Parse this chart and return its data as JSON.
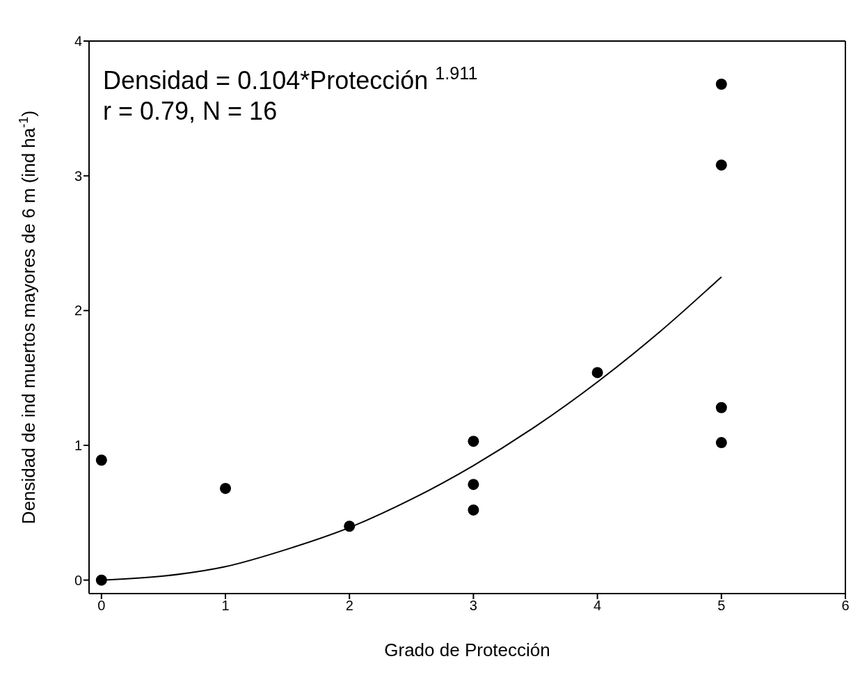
{
  "chart_data": {
    "type": "scatter",
    "xlabel": "Grado de Protección",
    "ylabel": "Densidad de ind muertos mayores de 6 m (ind ha$^{-1}$)",
    "annotations": [
      "Densidad = 0.104*Protección $^{1.911}$",
      "r = 0.79, N = 16"
    ],
    "xlim": [
      -0.1,
      6
    ],
    "xticks": [
      0,
      1,
      2,
      3,
      4,
      5,
      6
    ],
    "ylim": [
      -0.1,
      4
    ],
    "yticks": [
      0,
      1,
      2,
      3,
      4
    ],
    "grid": false,
    "legend": false,
    "marker": "circle",
    "series": [
      {
        "color": "#000000",
        "x": [
          0,
          0,
          1,
          2,
          3,
          3,
          3,
          4,
          5,
          5,
          5,
          5
        ],
        "values": [
          0.89,
          0,
          0.68,
          0.4,
          1.03,
          0.71,
          0.52,
          1.54,
          3.68,
          3.08,
          1.28,
          1.02
        ]
      },
      {
        "type": "line",
        "marker": "none",
        "color": "#000000",
        "line_style": "solid",
        "x": [
          0,
          0.5,
          1,
          1.5,
          2,
          2.5,
          3,
          3.5,
          4,
          4.5,
          5
        ],
        "values": [
          0,
          0.03,
          0.1,
          0.23,
          0.39,
          0.6,
          0.85,
          1.14,
          1.47,
          1.84,
          2.25
        ]
      }
    ]
  }
}
